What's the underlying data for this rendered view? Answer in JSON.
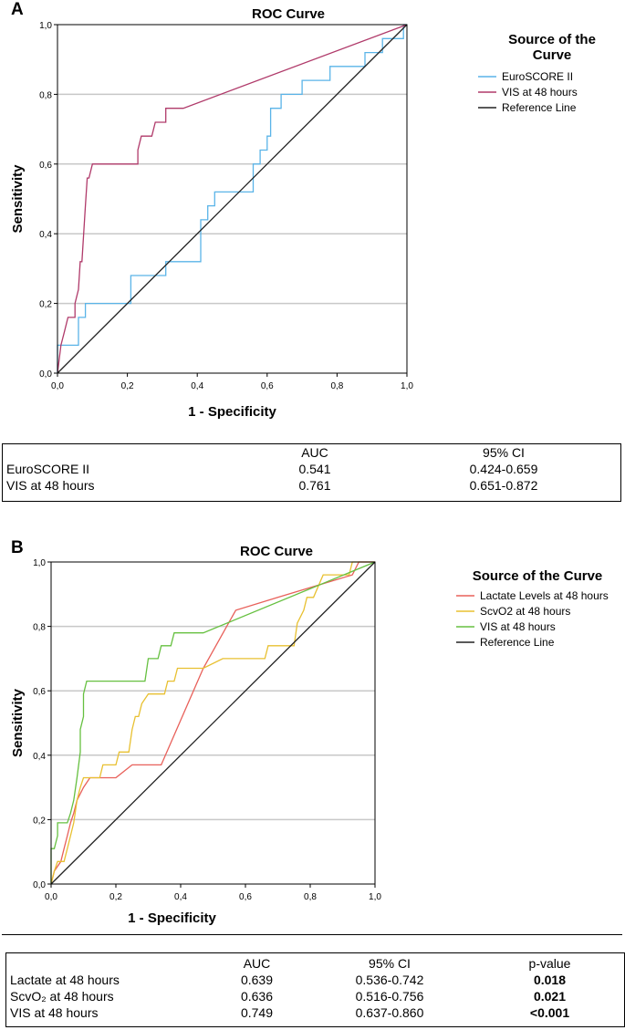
{
  "chart_data": [
    {
      "type": "line",
      "panel": "A",
      "title": "ROC Curve",
      "xlabel": "1 - Specificity",
      "ylabel": "Sensitivity",
      "xlim": [
        0,
        1
      ],
      "ylim": [
        0,
        1
      ],
      "xticks": [
        "0,0",
        "0,2",
        "0,4",
        "0,6",
        "0,8",
        "1,0"
      ],
      "yticks": [
        "0,0",
        "0,2",
        "0,4",
        "0,6",
        "0,8",
        "1,0"
      ],
      "grid": "horizontal",
      "legend_title": "Source of the Curve",
      "legend_position": "right",
      "series": [
        {
          "name": "EuroSCORE II",
          "color": "#5ab4e8",
          "step": true,
          "points": [
            [
              0,
              0
            ],
            [
              0,
              0.08
            ],
            [
              0.06,
              0.08
            ],
            [
              0.06,
              0.16
            ],
            [
              0.08,
              0.16
            ],
            [
              0.08,
              0.2
            ],
            [
              0.21,
              0.2
            ],
            [
              0.21,
              0.28
            ],
            [
              0.31,
              0.28
            ],
            [
              0.31,
              0.32
            ],
            [
              0.41,
              0.32
            ],
            [
              0.41,
              0.44
            ],
            [
              0.43,
              0.44
            ],
            [
              0.43,
              0.48
            ],
            [
              0.45,
              0.48
            ],
            [
              0.45,
              0.52
            ],
            [
              0.56,
              0.52
            ],
            [
              0.56,
              0.6
            ],
            [
              0.58,
              0.6
            ],
            [
              0.58,
              0.64
            ],
            [
              0.6,
              0.64
            ],
            [
              0.6,
              0.68
            ],
            [
              0.61,
              0.68
            ],
            [
              0.61,
              0.76
            ],
            [
              0.64,
              0.76
            ],
            [
              0.64,
              0.8
            ],
            [
              0.7,
              0.8
            ],
            [
              0.7,
              0.84
            ],
            [
              0.78,
              0.84
            ],
            [
              0.78,
              0.88
            ],
            [
              0.88,
              0.88
            ],
            [
              0.88,
              0.92
            ],
            [
              0.93,
              0.92
            ],
            [
              0.93,
              0.96
            ],
            [
              0.99,
              0.96
            ],
            [
              0.99,
              1.0
            ],
            [
              1,
              1
            ]
          ]
        },
        {
          "name": "VIS at 48 hours",
          "color": "#b03a6a",
          "step": false,
          "points": [
            [
              0,
              0
            ],
            [
              0.01,
              0.08
            ],
            [
              0.02,
              0.12
            ],
            [
              0.03,
              0.16
            ],
            [
              0.05,
              0.16
            ],
            [
              0.05,
              0.2
            ],
            [
              0.06,
              0.24
            ],
            [
              0.065,
              0.32
            ],
            [
              0.07,
              0.32
            ],
            [
              0.075,
              0.4
            ],
            [
              0.08,
              0.48
            ],
            [
              0.085,
              0.56
            ],
            [
              0.09,
              0.56
            ],
            [
              0.1,
              0.6
            ],
            [
              0.23,
              0.6
            ],
            [
              0.23,
              0.64
            ],
            [
              0.24,
              0.68
            ],
            [
              0.27,
              0.68
            ],
            [
              0.28,
              0.72
            ],
            [
              0.31,
              0.72
            ],
            [
              0.31,
              0.76
            ],
            [
              0.36,
              0.76
            ],
            [
              1,
              1
            ]
          ]
        },
        {
          "name": "Reference Line",
          "color": "#222222",
          "step": false,
          "points": [
            [
              0,
              0
            ],
            [
              1,
              1
            ]
          ]
        }
      ]
    },
    {
      "type": "line",
      "panel": "B",
      "title": "ROC Curve",
      "xlabel": "1 - Specificity",
      "ylabel": "Sensitivity",
      "xlim": [
        0,
        1
      ],
      "ylim": [
        0,
        1
      ],
      "xticks": [
        "0,0",
        "0,2",
        "0,4",
        "0,6",
        "0,8",
        "1,0"
      ],
      "yticks": [
        "0,0",
        "0,2",
        "0,4",
        "0,6",
        "0,8",
        "1,0"
      ],
      "grid": "horizontal",
      "legend_title": "Source of the Curve",
      "legend_position": "right",
      "series": [
        {
          "name": "Lactate Levels at 48 hours",
          "color": "#e8605a",
          "step": false,
          "points": [
            [
              0,
              0
            ],
            [
              0.01,
              0.04
            ],
            [
              0.03,
              0.07
            ],
            [
              0.04,
              0.11
            ],
            [
              0.05,
              0.15
            ],
            [
              0.06,
              0.19
            ],
            [
              0.07,
              0.22
            ],
            [
              0.08,
              0.26
            ],
            [
              0.1,
              0.3
            ],
            [
              0.12,
              0.33
            ],
            [
              0.2,
              0.33
            ],
            [
              0.25,
              0.37
            ],
            [
              0.34,
              0.37
            ],
            [
              0.47,
              0.67
            ],
            [
              0.57,
              0.85
            ],
            [
              0.7,
              0.89
            ],
            [
              0.93,
              0.96
            ],
            [
              0.95,
              1.0
            ],
            [
              1,
              1
            ]
          ]
        },
        {
          "name": "ScvO2 at 48 hours",
          "color": "#e8c030",
          "step": false,
          "points": [
            [
              0,
              0
            ],
            [
              0.01,
              0.04
            ],
            [
              0.02,
              0.07
            ],
            [
              0.04,
              0.07
            ],
            [
              0.05,
              0.11
            ],
            [
              0.06,
              0.15
            ],
            [
              0.07,
              0.19
            ],
            [
              0.08,
              0.26
            ],
            [
              0.09,
              0.3
            ],
            [
              0.1,
              0.33
            ],
            [
              0.15,
              0.33
            ],
            [
              0.16,
              0.37
            ],
            [
              0.2,
              0.37
            ],
            [
              0.21,
              0.41
            ],
            [
              0.24,
              0.41
            ],
            [
              0.25,
              0.48
            ],
            [
              0.26,
              0.52
            ],
            [
              0.27,
              0.52
            ],
            [
              0.28,
              0.56
            ],
            [
              0.3,
              0.59
            ],
            [
              0.35,
              0.59
            ],
            [
              0.36,
              0.63
            ],
            [
              0.38,
              0.63
            ],
            [
              0.39,
              0.67
            ],
            [
              0.47,
              0.67
            ],
            [
              0.53,
              0.7
            ],
            [
              0.66,
              0.7
            ],
            [
              0.67,
              0.74
            ],
            [
              0.75,
              0.74
            ],
            [
              0.76,
              0.81
            ],
            [
              0.78,
              0.85
            ],
            [
              0.79,
              0.89
            ],
            [
              0.81,
              0.89
            ],
            [
              0.84,
              0.96
            ],
            [
              0.92,
              0.96
            ],
            [
              0.93,
              1.0
            ],
            [
              1,
              1
            ]
          ]
        },
        {
          "name": "VIS at 48 hours",
          "color": "#66c040",
          "step": false,
          "points": [
            [
              0,
              0
            ],
            [
              0,
              0.11
            ],
            [
              0.01,
              0.11
            ],
            [
              0.02,
              0.15
            ],
            [
              0.02,
              0.19
            ],
            [
              0.05,
              0.19
            ],
            [
              0.06,
              0.22
            ],
            [
              0.07,
              0.26
            ],
            [
              0.08,
              0.33
            ],
            [
              0.09,
              0.41
            ],
            [
              0.09,
              0.48
            ],
            [
              0.1,
              0.52
            ],
            [
              0.1,
              0.59
            ],
            [
              0.11,
              0.63
            ],
            [
              0.29,
              0.63
            ],
            [
              0.3,
              0.7
            ],
            [
              0.33,
              0.7
            ],
            [
              0.34,
              0.74
            ],
            [
              0.37,
              0.74
            ],
            [
              0.38,
              0.78
            ],
            [
              0.47,
              0.78
            ],
            [
              1,
              1
            ]
          ]
        },
        {
          "name": "Reference Line",
          "color": "#222222",
          "step": false,
          "points": [
            [
              0,
              0
            ],
            [
              1,
              1
            ]
          ]
        }
      ]
    }
  ],
  "panels": {
    "a": {
      "label": "A",
      "title": "ROC Curve",
      "xlabel": "1 - Specificity",
      "ylabel": "Sensitivity",
      "legend_title": "Source of the Curve",
      "legend": [
        "EuroSCORE II",
        "VIS at 48 hours",
        "Reference Line"
      ]
    },
    "b": {
      "label": "B",
      "title": "ROC Curve",
      "xlabel": "1 - Specificity",
      "ylabel": "Sensitivity",
      "legend_title": "Source of the Curve",
      "legend": [
        "Lactate Levels at 48 hours",
        "ScvO2 at 48 hours",
        "VIS at 48 hours",
        "Reference Line"
      ]
    }
  },
  "table_a": {
    "headers": [
      "",
      "AUC",
      "95% CI"
    ],
    "rows": [
      [
        "EuroSCORE II",
        "0.541",
        "0.424-0.659"
      ],
      [
        "VIS at 48 hours",
        "0.761",
        "0.651-0.872"
      ]
    ]
  },
  "table_b": {
    "headers": [
      "",
      "AUC",
      "95% CI",
      "p-value"
    ],
    "rows": [
      [
        "Lactate at 48 hours",
        "0.639",
        "0.536-0.742",
        "0.018"
      ],
      [
        "ScvO₂ at 48 hours",
        "0.636",
        "0.516-0.756",
        "0.021"
      ],
      [
        "VIS at 48 hours",
        "0.749",
        "0.637-0.860",
        "<0.001"
      ]
    ]
  }
}
